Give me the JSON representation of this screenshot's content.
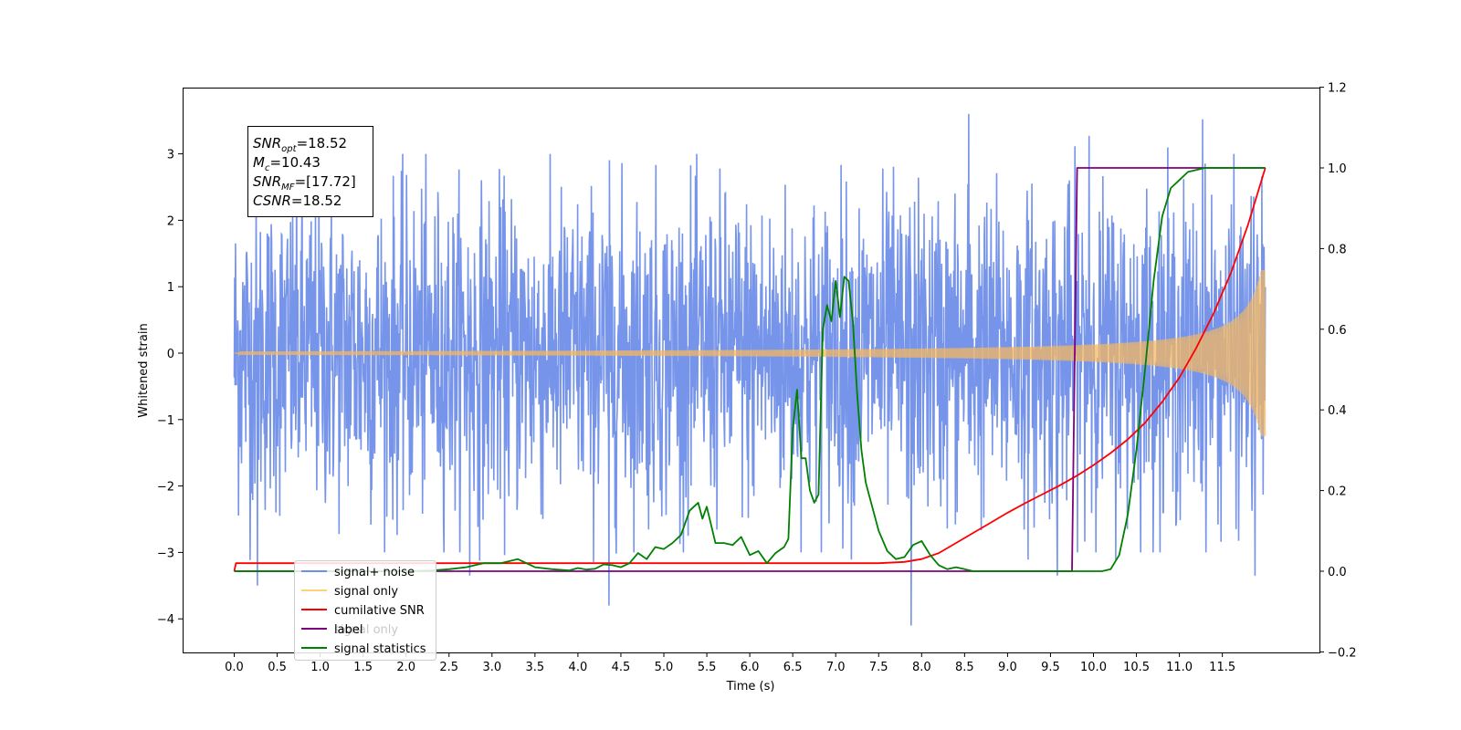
{
  "chart_data": {
    "type": "line",
    "xlabel": "Time (s)",
    "ylabel": "Whitened strain",
    "xlim": [
      -0.6,
      12.6
    ],
    "ylim": [
      -4.6,
      3.98
    ],
    "y2lim": [
      -0.2,
      1.2
    ],
    "x_ticks": [
      "0.0",
      "0.5",
      "1.0",
      "1.5",
      "2.0",
      "2.5",
      "3.0",
      "3.5",
      "4.0",
      "4.5",
      "5.0",
      "5.5",
      "6.0",
      "6.5",
      "7.0",
      "7.5",
      "8.0",
      "8.5",
      "9.0",
      "9.5",
      "10.0",
      "10.5",
      "11.0",
      "11.5"
    ],
    "y_ticks": [
      "3",
      "2",
      "1",
      "0",
      "−1",
      "−2",
      "−3",
      "−4"
    ],
    "y2_ticks": [
      "1.2",
      "1.0",
      "0.8",
      "0.6",
      "0.4",
      "0.2",
      "0.0",
      "−0.2"
    ],
    "legend": {
      "placement": "lower-left"
    },
    "annotation": {
      "lines": [
        {
          "sym": "SNR",
          "sub": "opt",
          "value": "=18.52"
        },
        {
          "sym": "M",
          "sub": "c",
          "value": "=10.43"
        },
        {
          "sym": "SNR",
          "sub": "MF",
          "value": "=[17.72]"
        },
        {
          "sym": "CSNR",
          "sub": "",
          "value": "=18.52"
        }
      ]
    },
    "series": [
      {
        "name": "signal+ noise",
        "axis": "left",
        "color": "#6f8ee8",
        "kind": "noise",
        "t_range": [
          0.0,
          12.0
        ],
        "sigma": 1.25,
        "notable_spikes": [
          [
            8.55,
            3.6
          ],
          [
            11.27,
            3.52
          ],
          [
            9.95,
            3.27
          ],
          [
            7.88,
            -4.1
          ],
          [
            4.36,
            -3.8
          ],
          [
            0.27,
            -3.5
          ],
          [
            9.58,
            -3.35
          ],
          [
            2.74,
            -3.35
          ],
          [
            11.88,
            -3.35
          ]
        ]
      },
      {
        "name": "signal only",
        "axis": "left",
        "color": "#f5b860",
        "kind": "chirp",
        "t_range": [
          0.0,
          12.0
        ],
        "amplitude_end": 1.25
      },
      {
        "name": "cumilative SNR",
        "axis": "right",
        "color": "#ff0000",
        "x": [
          0.0,
          0.02,
          1.0,
          2.0,
          3.0,
          4.0,
          5.0,
          6.0,
          7.0,
          7.5,
          7.8,
          8.0,
          8.2,
          8.4,
          8.6,
          8.8,
          9.0,
          9.2,
          9.4,
          9.6,
          9.8,
          10.0,
          10.2,
          10.4,
          10.6,
          10.8,
          11.0,
          11.2,
          11.4,
          11.6,
          11.8,
          11.9,
          12.0
        ],
        "y": [
          0.0,
          0.02,
          0.02,
          0.02,
          0.02,
          0.02,
          0.02,
          0.02,
          0.02,
          0.02,
          0.023,
          0.03,
          0.045,
          0.07,
          0.095,
          0.12,
          0.145,
          0.168,
          0.19,
          0.212,
          0.236,
          0.263,
          0.293,
          0.327,
          0.368,
          0.42,
          0.48,
          0.555,
          0.64,
          0.74,
          0.86,
          0.93,
          1.0
        ]
      },
      {
        "name": "label",
        "axis": "right",
        "color": "#800080",
        "x": [
          0.0,
          9.75,
          9.81,
          12.0
        ],
        "y": [
          0.0,
          0.0,
          1.0,
          1.0
        ]
      },
      {
        "name": "signal statistics",
        "axis": "right",
        "color": "#008000",
        "x": [
          0.0,
          0.5,
          1.0,
          1.5,
          2.0,
          2.3,
          2.5,
          2.7,
          2.9,
          3.1,
          3.3,
          3.5,
          3.7,
          3.9,
          4.0,
          4.1,
          4.2,
          4.3,
          4.4,
          4.5,
          4.6,
          4.7,
          4.8,
          4.9,
          5.0,
          5.1,
          5.2,
          5.3,
          5.4,
          5.45,
          5.5,
          5.6,
          5.7,
          5.8,
          5.9,
          6.0,
          6.1,
          6.2,
          6.3,
          6.4,
          6.45,
          6.5,
          6.55,
          6.6,
          6.65,
          6.7,
          6.75,
          6.8,
          6.85,
          6.9,
          6.95,
          7.0,
          7.05,
          7.1,
          7.15,
          7.2,
          7.25,
          7.3,
          7.35,
          7.4,
          7.5,
          7.6,
          7.7,
          7.8,
          7.9,
          8.0,
          8.1,
          8.2,
          8.3,
          8.4,
          8.5,
          8.6,
          8.8,
          9.0,
          9.5,
          10.0,
          10.1,
          10.2,
          10.3,
          10.4,
          10.5,
          10.6,
          10.7,
          10.8,
          10.9,
          11.0,
          11.1,
          11.3,
          11.6,
          12.0
        ],
        "y": [
          0.0,
          0.0,
          0.0,
          0.0,
          0.0,
          0.002,
          0.005,
          0.01,
          0.02,
          0.02,
          0.03,
          0.01,
          0.005,
          0.002,
          0.008,
          0.004,
          0.006,
          0.017,
          0.015,
          0.01,
          0.02,
          0.045,
          0.03,
          0.06,
          0.055,
          0.07,
          0.09,
          0.15,
          0.17,
          0.13,
          0.16,
          0.07,
          0.07,
          0.065,
          0.085,
          0.04,
          0.05,
          0.02,
          0.045,
          0.06,
          0.08,
          0.35,
          0.45,
          0.28,
          0.28,
          0.2,
          0.17,
          0.19,
          0.6,
          0.66,
          0.62,
          0.72,
          0.63,
          0.73,
          0.72,
          0.62,
          0.44,
          0.3,
          0.22,
          0.18,
          0.1,
          0.05,
          0.03,
          0.035,
          0.065,
          0.075,
          0.04,
          0.015,
          0.005,
          0.01,
          0.005,
          0.0,
          0.0,
          0.0,
          0.0,
          0.0,
          0.0,
          0.005,
          0.04,
          0.14,
          0.3,
          0.5,
          0.72,
          0.88,
          0.95,
          0.97,
          0.99,
          1.0,
          1.0,
          1.0
        ]
      }
    ],
    "legend_entries": [
      {
        "label": "signal+ noise",
        "color": "#6f8ee8",
        "ghost": ""
      },
      {
        "label": "signal only",
        "color": "#ffd27a",
        "ghost": ""
      },
      {
        "label": "cumilative SNR",
        "color": "#ff0000",
        "ghost": ""
      },
      {
        "label": "label",
        "color": "#800080",
        "ghost": "signal only"
      },
      {
        "label": "signal statistics",
        "color": "#008000",
        "ghost": ""
      }
    ]
  }
}
